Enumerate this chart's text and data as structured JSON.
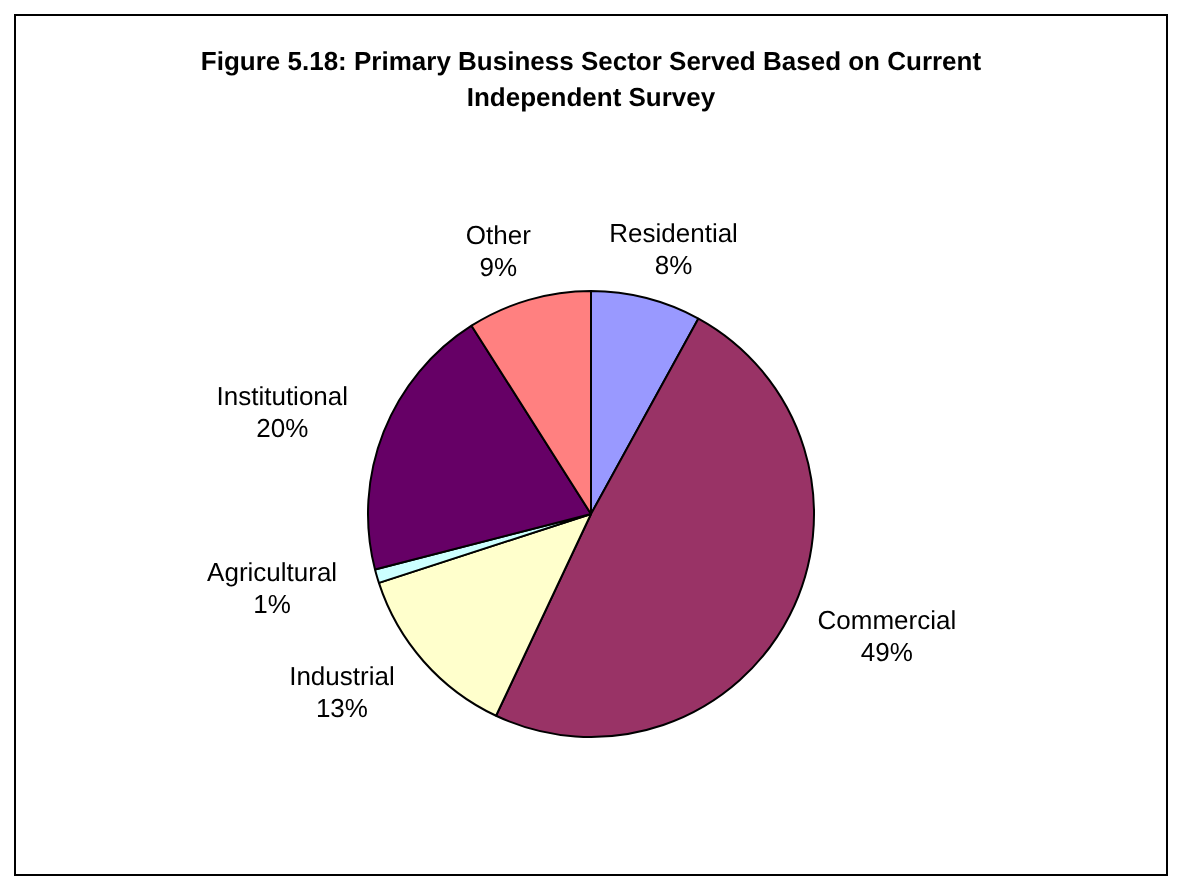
{
  "chart_data": {
    "type": "pie",
    "title": "Figure 5.18: Primary Business Sector Served Based on Current Independent Survey",
    "categories": [
      "Residential",
      "Commercial",
      "Industrial",
      "Agricultural",
      "Institutional",
      "Other"
    ],
    "values": [
      8,
      49,
      13,
      1,
      20,
      9
    ],
    "value_labels": [
      "8%",
      "49%",
      "13%",
      "1%",
      "20%",
      "9%"
    ],
    "colors": [
      "#9999ff",
      "#993366",
      "#ffffcc",
      "#ccffff",
      "#660066",
      "#ff8080"
    ],
    "legend": false
  }
}
